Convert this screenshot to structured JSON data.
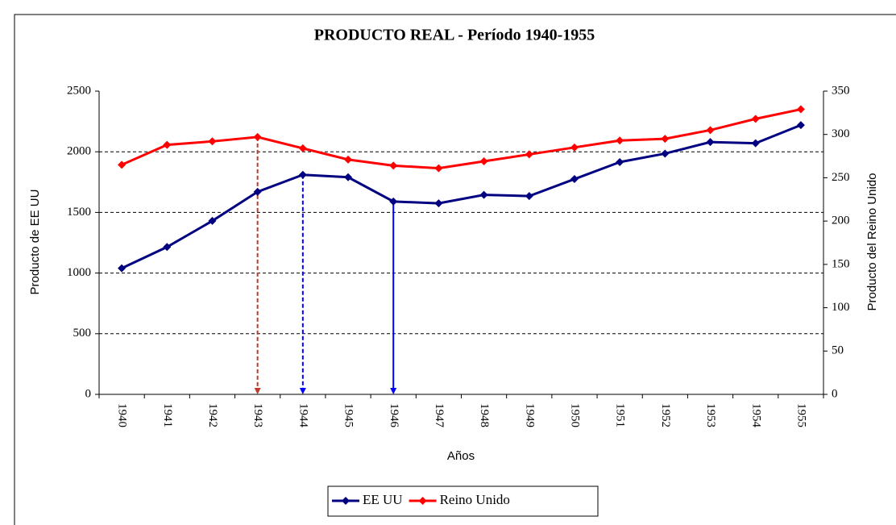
{
  "chart_data": {
    "type": "line",
    "title": "PRODUCTO REAL - Período 1940-1955",
    "x_label": "Años",
    "y_label": "Producto de EE UU",
    "y2_label": "Producto del Reino Unido",
    "categories": [
      "1940",
      "1941",
      "1942",
      "1943",
      "1944",
      "1945",
      "1946",
      "1947",
      "1948",
      "1949",
      "1950",
      "1951",
      "1952",
      "1953",
      "1954",
      "1955"
    ],
    "series": [
      {
        "name": "EE UU",
        "color": "#000080",
        "values": [
          1040,
          1215,
          1430,
          1670,
          1810,
          1790,
          1590,
          1575,
          1645,
          1635,
          1775,
          1915,
          1985,
          2080,
          2070,
          2220
        ]
      },
      {
        "name": "Reino Unido",
        "color": "#ff0000",
        "axis": "y2",
        "values": [
          265,
          288,
          292,
          297,
          284,
          271,
          264,
          261,
          269,
          277,
          285,
          293,
          295,
          305,
          318,
          329
        ]
      }
    ],
    "ylim": [
      0,
      2500
    ],
    "yticks": [
      0,
      500,
      1000,
      1500,
      2000,
      2500
    ],
    "y2lim": [
      0,
      350
    ],
    "y2ticks": [
      0,
      50,
      100,
      150,
      200,
      250,
      300,
      350
    ],
    "grid": true,
    "legend": "bottom"
  }
}
